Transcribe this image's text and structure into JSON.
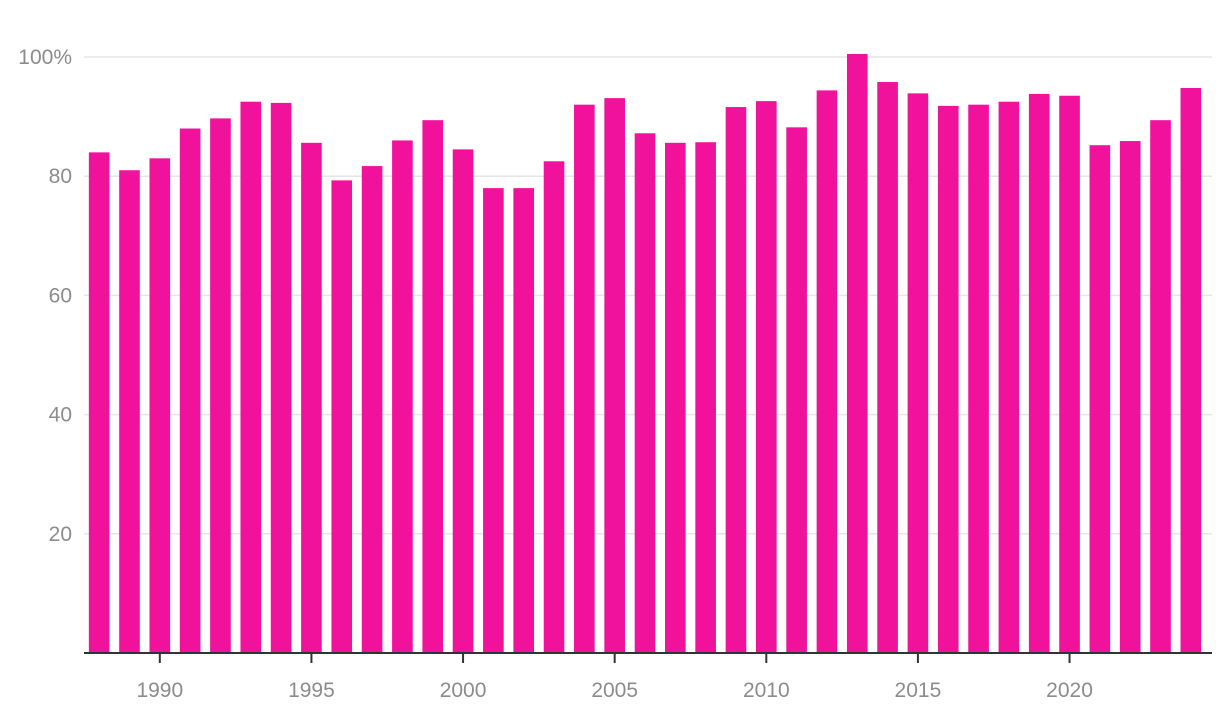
{
  "chart_data": {
    "type": "bar",
    "x": [
      1988,
      1989,
      1990,
      1991,
      1992,
      1993,
      1994,
      1995,
      1996,
      1997,
      1998,
      1999,
      2000,
      2001,
      2002,
      2003,
      2004,
      2005,
      2006,
      2007,
      2008,
      2009,
      2010,
      2011,
      2012,
      2013,
      2014,
      2015,
      2016,
      2017,
      2018,
      2019,
      2020,
      2021,
      2022,
      2023,
      2024
    ],
    "values": [
      84.0,
      81.0,
      83.0,
      88.0,
      89.7,
      92.5,
      92.3,
      85.6,
      79.3,
      81.7,
      86.0,
      89.4,
      84.5,
      78.0,
      78.0,
      82.5,
      92.0,
      93.1,
      87.2,
      85.6,
      85.7,
      91.6,
      92.6,
      88.2,
      94.4,
      100.5,
      95.8,
      93.9,
      91.8,
      92.0,
      92.5,
      93.8,
      93.5,
      85.2,
      85.9,
      89.4,
      94.8
    ],
    "y_ticks": [
      20,
      40,
      60,
      80,
      100
    ],
    "y_tick_labels": [
      "20",
      "40",
      "60",
      "80",
      "100%"
    ],
    "x_ticks": [
      1990,
      1995,
      2000,
      2005,
      2010,
      2015,
      2020
    ],
    "x_tick_labels": [
      "1990",
      "1995",
      "2000",
      "2005",
      "2010",
      "2015",
      "2020"
    ],
    "ylim": [
      0,
      100
    ],
    "xlim": [
      1987.5,
      2024.5
    ],
    "grid": true,
    "colors": {
      "bar": "#f0129a",
      "grid": "#e6e6e6",
      "axis": "#333333",
      "tick_text": "#8c8c8c"
    }
  }
}
